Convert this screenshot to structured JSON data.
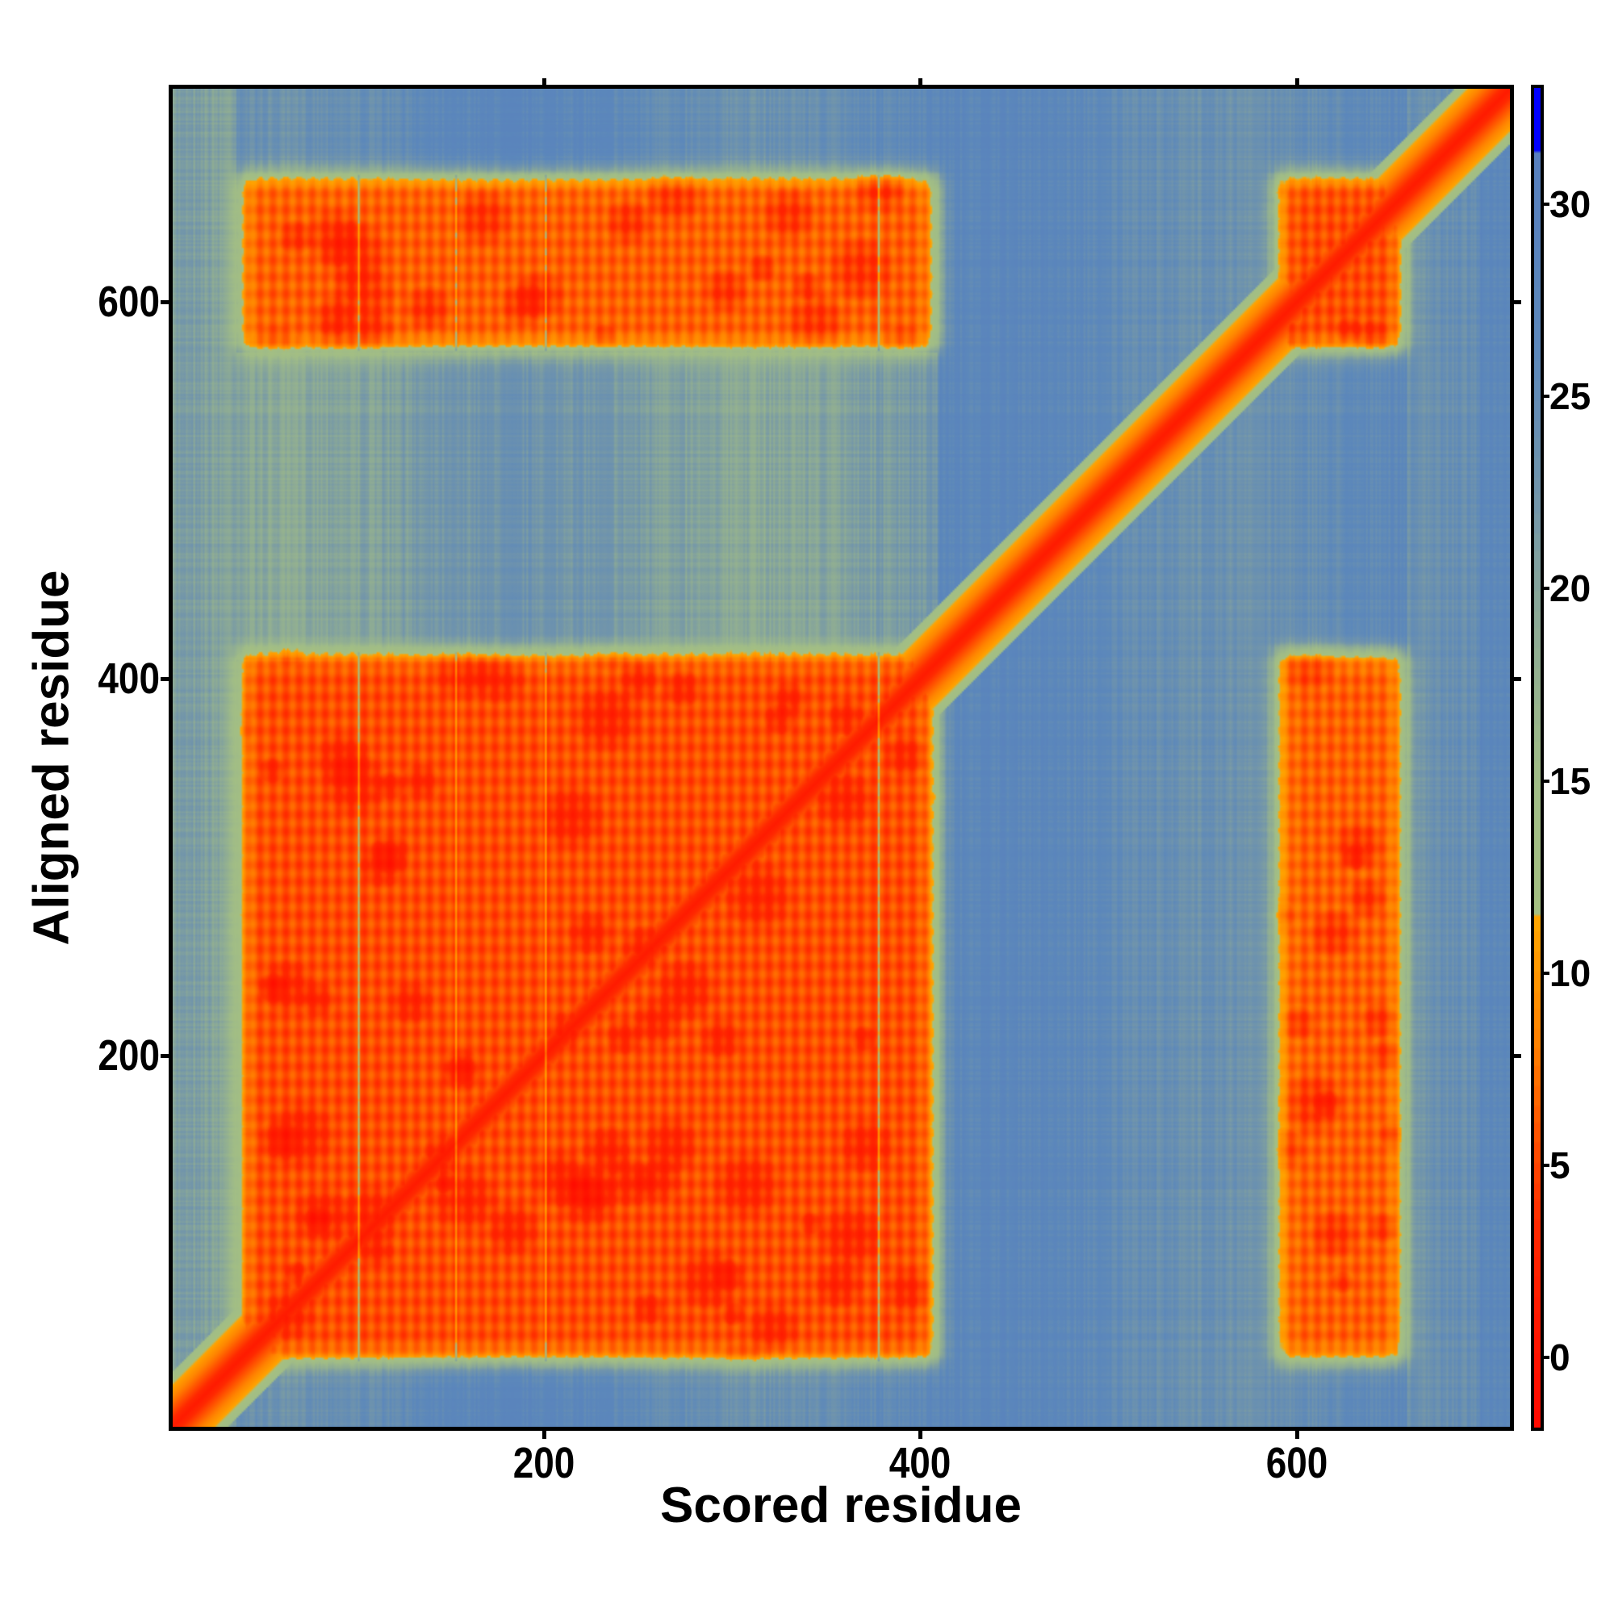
{
  "chart_data": {
    "type": "heatmap",
    "title": "",
    "xlabel": "Scored residue",
    "ylabel": "Aligned residue",
    "xlim": [
      0.5,
      715.5
    ],
    "ylim": [
      0.5,
      715.5
    ],
    "x_ticks": [
      "200",
      "400",
      "600"
    ],
    "x_tick_values": [
      200,
      400,
      600
    ],
    "y_ticks": [
      "200",
      "400",
      "600"
    ],
    "y_tick_values": [
      200,
      400,
      600
    ],
    "colorbar": {
      "range": [
        -1.9,
        33.1
      ],
      "ticks": [
        "0",
        "5",
        "10",
        "15",
        "20",
        "25",
        "30"
      ],
      "tick_values": [
        0,
        5,
        10,
        15,
        20,
        25,
        30
      ],
      "colors": {
        "low": "#ff1500",
        "mid_low": "#ff5000",
        "orange": "#ffa500",
        "mid": "#a8c080",
        "high": "#5b88bb",
        "max": "#0000ff"
      }
    },
    "low_error_blocks": [
      {
        "x": [
          35,
          410
        ],
        "y": [
          35,
          415
        ],
        "value": 3
      },
      {
        "x": [
          35,
          410
        ],
        "y": [
          575,
          670
        ],
        "value": 4
      },
      {
        "x": [
          590,
          660
        ],
        "y": [
          35,
          415
        ],
        "value": 4
      },
      {
        "x": [
          590,
          660
        ],
        "y": [
          575,
          670
        ],
        "value": 3
      }
    ],
    "diagonal_value": 1,
    "background_value": 25
  }
}
